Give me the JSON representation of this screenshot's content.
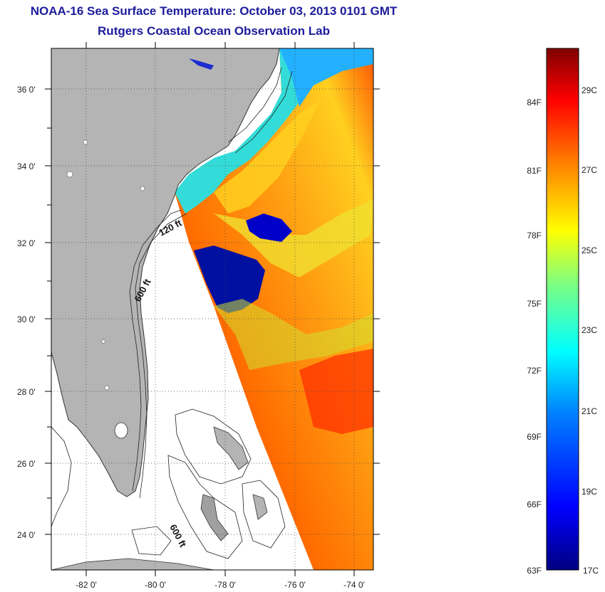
{
  "title": "NOAA-16 Sea Surface Temperature:  October 03, 2013 0101 GMT",
  "subtitle": "Rutgers Coastal Ocean Observation Lab",
  "lat_ticks": [
    "36 0'",
    "34 0'",
    "32 0'",
    "30 0'",
    "28 0'",
    "26 0'",
    "24 0'"
  ],
  "lon_ticks": [
    "-82 0'",
    "-80 0'",
    "-78 0'",
    "-76 0'",
    "-74 0'"
  ],
  "isobath_labels": [
    "120 ft",
    "600 ft",
    "600 ft"
  ],
  "colorbar": {
    "fahrenheit": [
      "84F",
      "81F",
      "78F",
      "75F",
      "72F",
      "69F",
      "66F",
      "63F"
    ],
    "celsius": [
      "29C",
      "27C",
      "25C",
      "23C",
      "21C",
      "19C",
      "17C"
    ],
    "range_f": [
      63,
      87
    ],
    "colors": [
      "#00007f",
      "#0000ff",
      "#007fff",
      "#00ffff",
      "#7fff7f",
      "#ffff00",
      "#ff7f00",
      "#ff0000",
      "#7f0000"
    ]
  },
  "colors": {
    "land": "#b4b4b4",
    "no_data": "#ffffff",
    "title": "#1c1c9c"
  }
}
